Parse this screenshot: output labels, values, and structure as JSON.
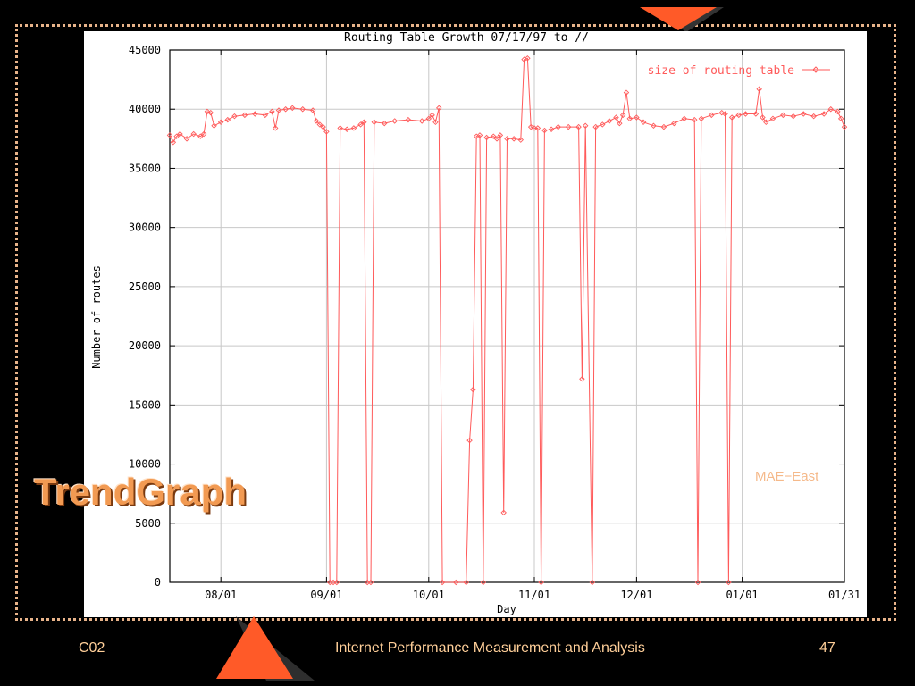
{
  "slide": {
    "heading": "TrendGraph",
    "annotation": "MAE−East",
    "footer_left": "C02",
    "footer_center": "Internet Performance Measurement and Analysis",
    "footer_right": "47"
  },
  "colors": {
    "background": "#000000",
    "accent_orange": "#ff5a28",
    "frame_dots": "#e8b38a",
    "heading": "#f29a52",
    "series": "#ff5a5a",
    "annotation": "#f5b98a"
  },
  "chart_data": {
    "type": "line",
    "title": "Routing Table Growth 07/17/97 to //",
    "xlabel": "Day",
    "ylabel": "Number of routes",
    "xlim": [
      "1997-07-17",
      "1998-01-31"
    ],
    "ylim": [
      0,
      45000
    ],
    "yticks": [
      0,
      5000,
      10000,
      15000,
      20000,
      25000,
      30000,
      35000,
      40000,
      45000
    ],
    "xticks": [
      {
        "date": "1997-08-01",
        "label": "08/01"
      },
      {
        "date": "1997-09-01",
        "label": "09/01"
      },
      {
        "date": "1997-10-01",
        "label": "10/01"
      },
      {
        "date": "1997-11-01",
        "label": "11/01"
      },
      {
        "date": "1997-12-01",
        "label": "12/01"
      },
      {
        "date": "1998-01-01",
        "label": "01/01"
      },
      {
        "date": "1998-01-31",
        "label": "01/31"
      }
    ],
    "grid": true,
    "legend_position": "top-right",
    "series": [
      {
        "name": "size of routing table",
        "points": [
          [
            "1997-07-17",
            37800
          ],
          [
            "1997-07-18",
            37200
          ],
          [
            "1997-07-19",
            37700
          ],
          [
            "1997-07-20",
            37900
          ],
          [
            "1997-07-22",
            37500
          ],
          [
            "1997-07-24",
            37900
          ],
          [
            "1997-07-26",
            37700
          ],
          [
            "1997-07-27",
            37900
          ],
          [
            "1997-07-28",
            39800
          ],
          [
            "1997-07-29",
            39700
          ],
          [
            "1997-07-30",
            38600
          ],
          [
            "1997-08-01",
            38900
          ],
          [
            "1997-08-03",
            39100
          ],
          [
            "1997-08-05",
            39400
          ],
          [
            "1997-08-08",
            39500
          ],
          [
            "1997-08-11",
            39600
          ],
          [
            "1997-08-14",
            39500
          ],
          [
            "1997-08-16",
            39800
          ],
          [
            "1997-08-17",
            38400
          ],
          [
            "1997-08-18",
            39900
          ],
          [
            "1997-08-20",
            40000
          ],
          [
            "1997-08-22",
            40100
          ],
          [
            "1997-08-25",
            40000
          ],
          [
            "1997-08-28",
            39900
          ],
          [
            "1997-08-29",
            39000
          ],
          [
            "1997-08-30",
            38700
          ],
          [
            "1997-08-31",
            38500
          ],
          [
            "1997-09-01",
            38100
          ],
          [
            "1997-09-02",
            0
          ],
          [
            "1997-09-03",
            0
          ],
          [
            "1997-09-04",
            0
          ],
          [
            "1997-09-05",
            38400
          ],
          [
            "1997-09-07",
            38300
          ],
          [
            "1997-09-09",
            38400
          ],
          [
            "1997-09-11",
            38700
          ],
          [
            "1997-09-12",
            38900
          ],
          [
            "1997-09-13",
            0
          ],
          [
            "1997-09-14",
            0
          ],
          [
            "1997-09-15",
            38900
          ],
          [
            "1997-09-18",
            38800
          ],
          [
            "1997-09-21",
            39000
          ],
          [
            "1997-09-25",
            39100
          ],
          [
            "1997-09-29",
            39000
          ],
          [
            "1997-10-01",
            39200
          ],
          [
            "1997-10-02",
            39500
          ],
          [
            "1997-10-03",
            38900
          ],
          [
            "1997-10-04",
            40100
          ],
          [
            "1997-10-05",
            0
          ],
          [
            "1997-10-09",
            0
          ],
          [
            "1997-10-12",
            0
          ],
          [
            "1997-10-13",
            12000
          ],
          [
            "1997-10-14",
            16300
          ],
          [
            "1997-10-15",
            37700
          ],
          [
            "1997-10-16",
            37800
          ],
          [
            "1997-10-17",
            0
          ],
          [
            "1997-10-18",
            37600
          ],
          [
            "1997-10-20",
            37700
          ],
          [
            "1997-10-21",
            37500
          ],
          [
            "1997-10-22",
            37800
          ],
          [
            "1997-10-23",
            5900
          ],
          [
            "1997-10-24",
            37500
          ],
          [
            "1997-10-26",
            37500
          ],
          [
            "1997-10-28",
            37400
          ],
          [
            "1997-10-29",
            44200
          ],
          [
            "1997-10-30",
            44300
          ],
          [
            "1997-10-31",
            38500
          ],
          [
            "1997-11-01",
            38400
          ],
          [
            "1997-11-02",
            38400
          ],
          [
            "1997-11-03",
            0
          ],
          [
            "1997-11-04",
            38200
          ],
          [
            "1997-11-06",
            38300
          ],
          [
            "1997-11-08",
            38500
          ],
          [
            "1997-11-11",
            38500
          ],
          [
            "1997-11-14",
            38500
          ],
          [
            "1997-11-15",
            17200
          ],
          [
            "1997-11-16",
            38600
          ],
          [
            "1997-11-18",
            0
          ],
          [
            "1997-11-19",
            38500
          ],
          [
            "1997-11-21",
            38700
          ],
          [
            "1997-11-23",
            39000
          ],
          [
            "1997-11-25",
            39300
          ],
          [
            "1997-11-26",
            38800
          ],
          [
            "1997-11-27",
            39500
          ],
          [
            "1997-11-28",
            41400
          ],
          [
            "1997-11-29",
            39200
          ],
          [
            "1997-12-01",
            39300
          ],
          [
            "1997-12-03",
            38900
          ],
          [
            "1997-12-06",
            38600
          ],
          [
            "1997-12-09",
            38500
          ],
          [
            "1997-12-12",
            38800
          ],
          [
            "1997-12-15",
            39200
          ],
          [
            "1997-12-18",
            39100
          ],
          [
            "1997-12-19",
            0
          ],
          [
            "1997-12-20",
            39200
          ],
          [
            "1997-12-23",
            39500
          ],
          [
            "1997-12-26",
            39700
          ],
          [
            "1997-12-27",
            39600
          ],
          [
            "1997-12-28",
            0
          ],
          [
            "1997-12-29",
            39300
          ],
          [
            "1997-12-31",
            39500
          ],
          [
            "1998-01-02",
            39600
          ],
          [
            "1998-01-05",
            39600
          ],
          [
            "1998-01-06",
            41700
          ],
          [
            "1998-01-07",
            39300
          ],
          [
            "1998-01-08",
            38900
          ],
          [
            "1998-01-10",
            39200
          ],
          [
            "1998-01-13",
            39500
          ],
          [
            "1998-01-16",
            39400
          ],
          [
            "1998-01-19",
            39600
          ],
          [
            "1998-01-22",
            39400
          ],
          [
            "1998-01-25",
            39600
          ],
          [
            "1998-01-27",
            40000
          ],
          [
            "1998-01-29",
            39800
          ],
          [
            "1998-01-30",
            39200
          ],
          [
            "1998-01-31",
            38500
          ]
        ]
      }
    ]
  }
}
